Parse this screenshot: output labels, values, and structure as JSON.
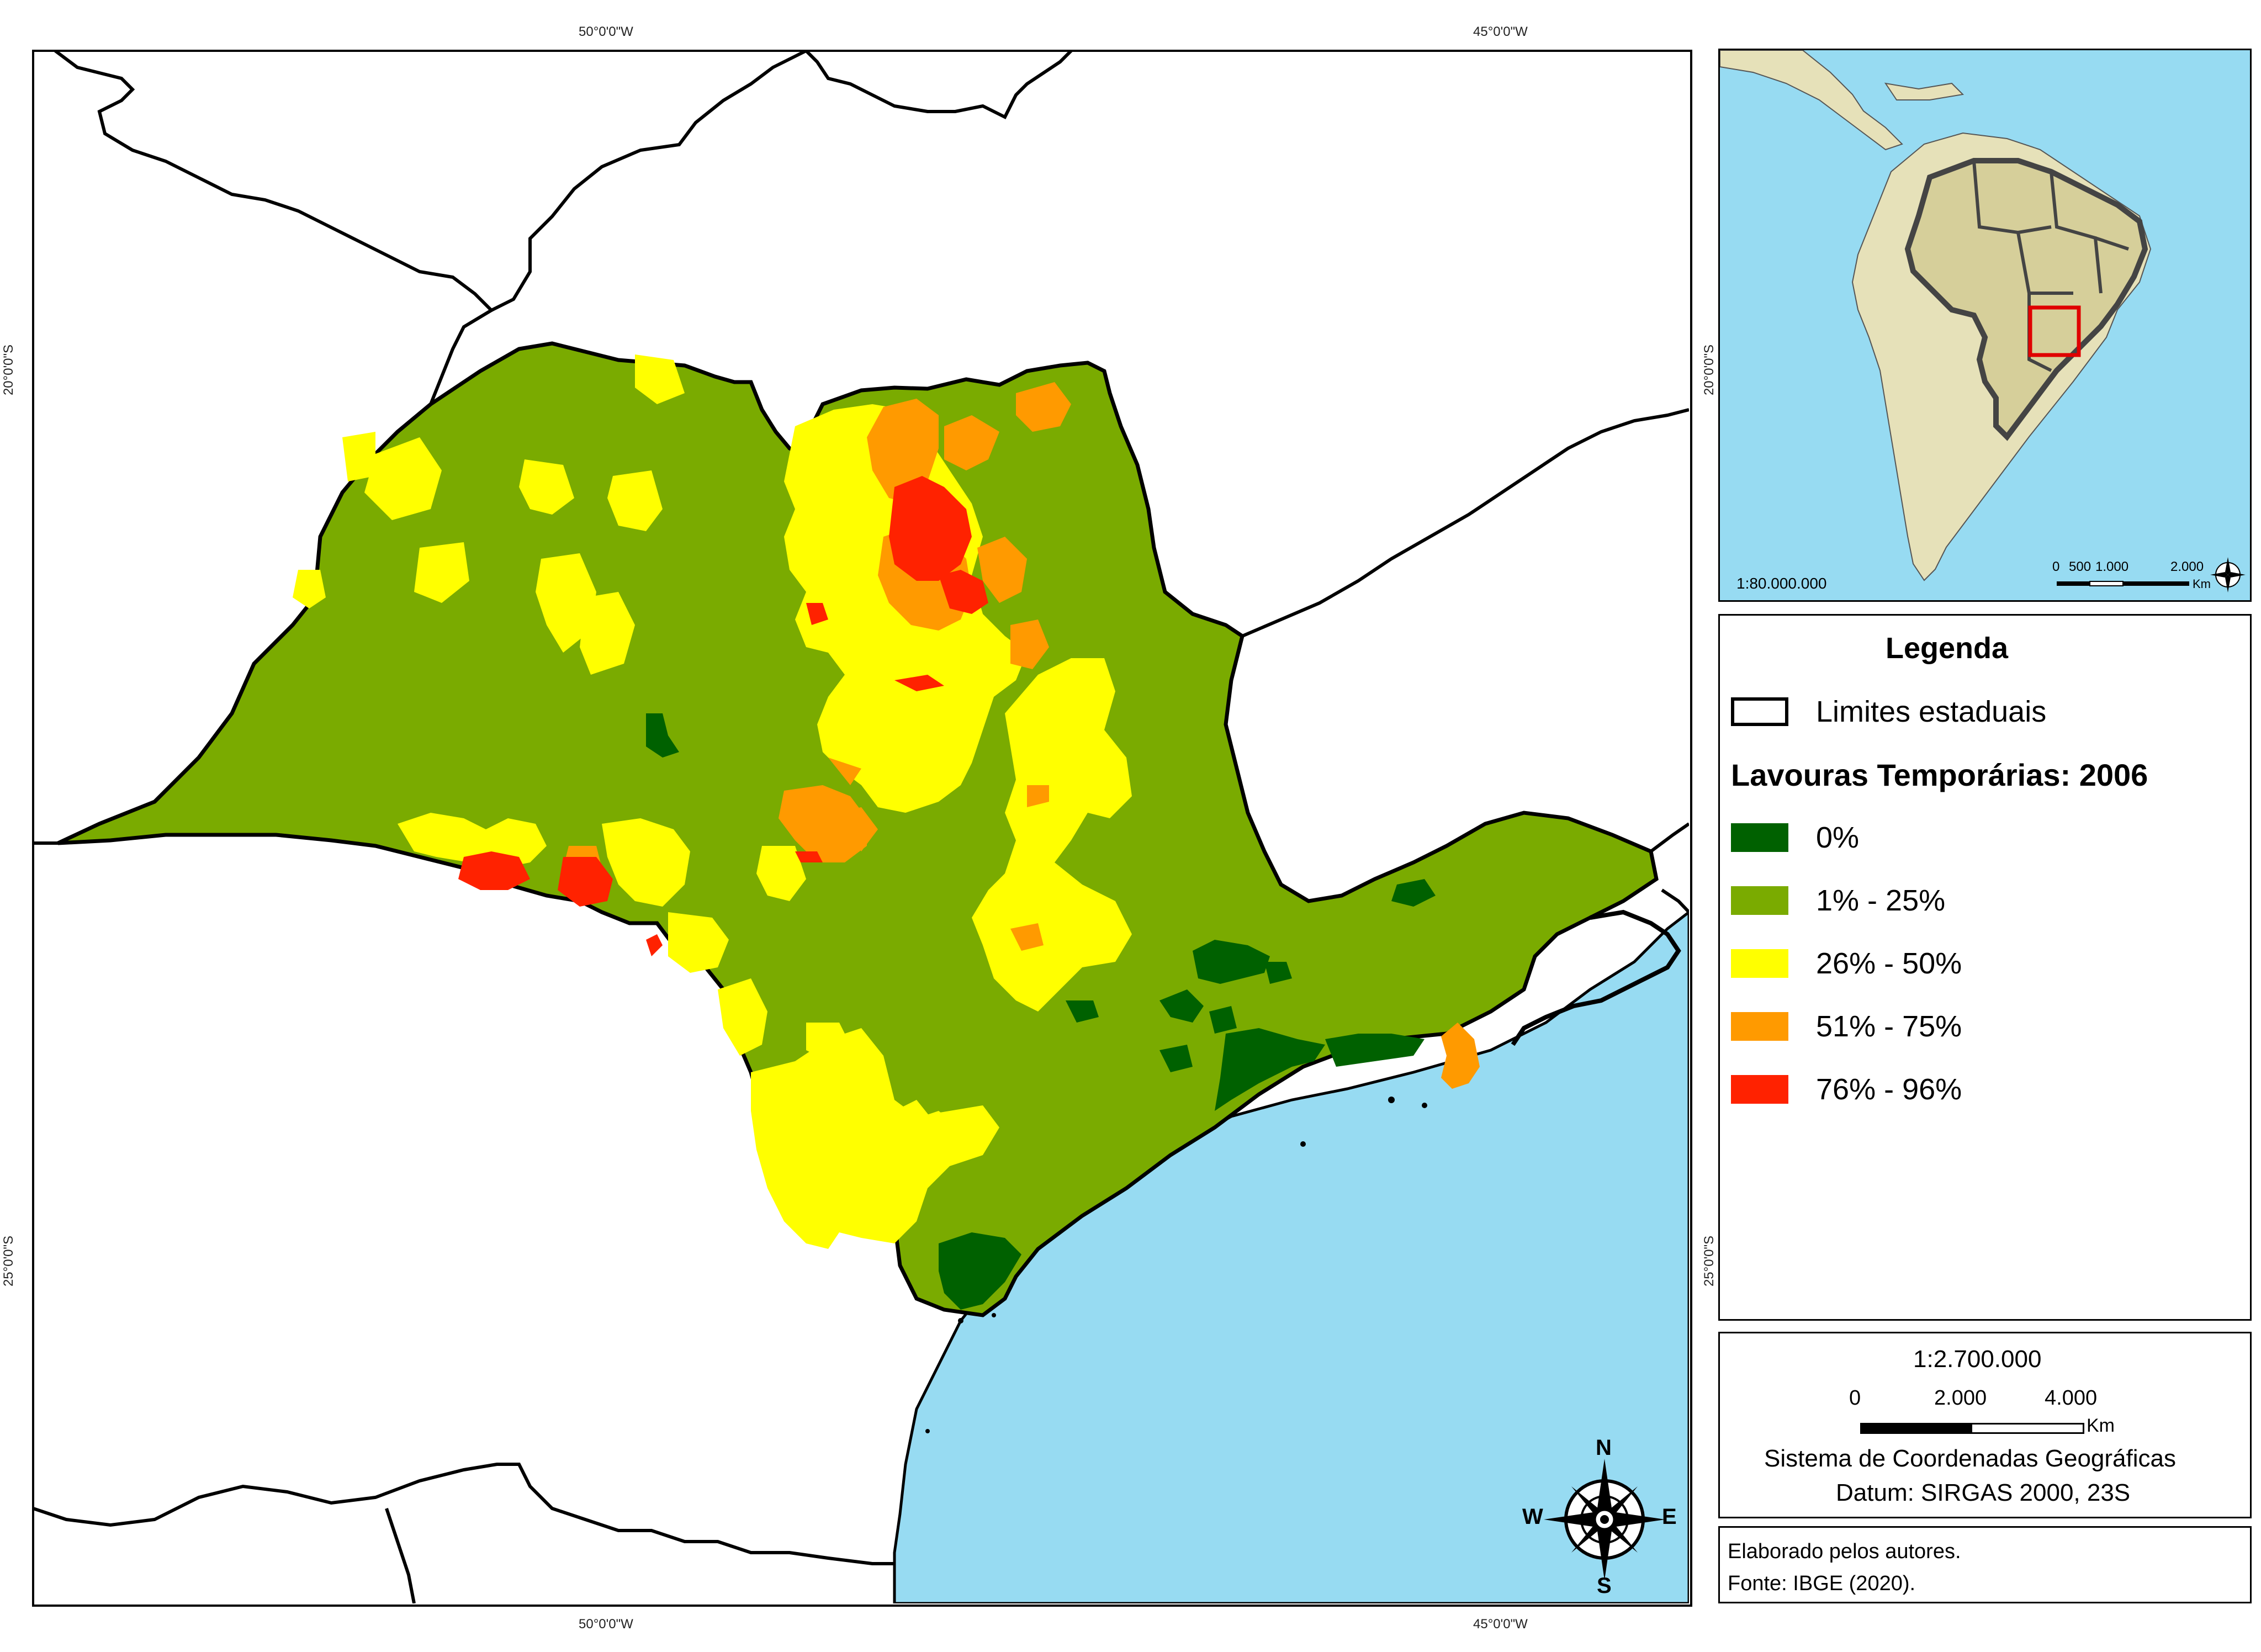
{
  "map": {
    "grid_labels": {
      "top_left": "50°0'0\"W",
      "top_right": "45°0'0\"W",
      "bottom_left": "50°0'0\"W",
      "bottom_right": "45°0'0\"W",
      "left_upper": "20°0'0\"S",
      "left_lower": "25°0'0\"S",
      "right_upper": "20°0'0\"S",
      "right_lower": "25°0'0\"S"
    },
    "compass": {
      "n": "N",
      "s": "S",
      "e": "E",
      "w": "W"
    },
    "colors": {
      "ocean": "#97dbf2",
      "land": "#ffffff",
      "class_0": "#006100",
      "class_1_25": "#7aab00",
      "class_26_50": "#ffff00",
      "class_51_75": "#ff9a00",
      "class_76_96": "#ff2200"
    }
  },
  "inset": {
    "scale_ratio": "1:80.000.000",
    "scale_ticks": [
      "0",
      "500",
      "1.000",
      "2.000"
    ],
    "scale_unit": "Km",
    "colors": {
      "ocean": "#97dbf2",
      "land": "#e6e1b9",
      "brazil": "#d6cf9a",
      "highlight": "#e00000"
    }
  },
  "legend": {
    "title": "Legenda",
    "boundary_label": "Limites estaduais",
    "subtitle": "Lavouras Temporárias: 2006",
    "items": [
      {
        "label": "0%",
        "color": "#006100"
      },
      {
        "label": "1% - 25%",
        "color": "#7aab00"
      },
      {
        "label": "26% - 50%",
        "color": "#ffff00"
      },
      {
        "label": "51% - 75%",
        "color": "#ff9a00"
      },
      {
        "label": "76% - 96%",
        "color": "#ff2200"
      }
    ]
  },
  "scale": {
    "ratio": "1:2.700.000",
    "ticks": [
      "0",
      "2.000",
      "4.000"
    ],
    "unit": "Km",
    "coord_system": "Sistema de Coordenadas Geográficas",
    "datum": "Datum: SIRGAS 2000, 23S"
  },
  "credits": {
    "line1": "Elaborado pelos autores.",
    "line2": "Fonte: IBGE (2020)."
  }
}
